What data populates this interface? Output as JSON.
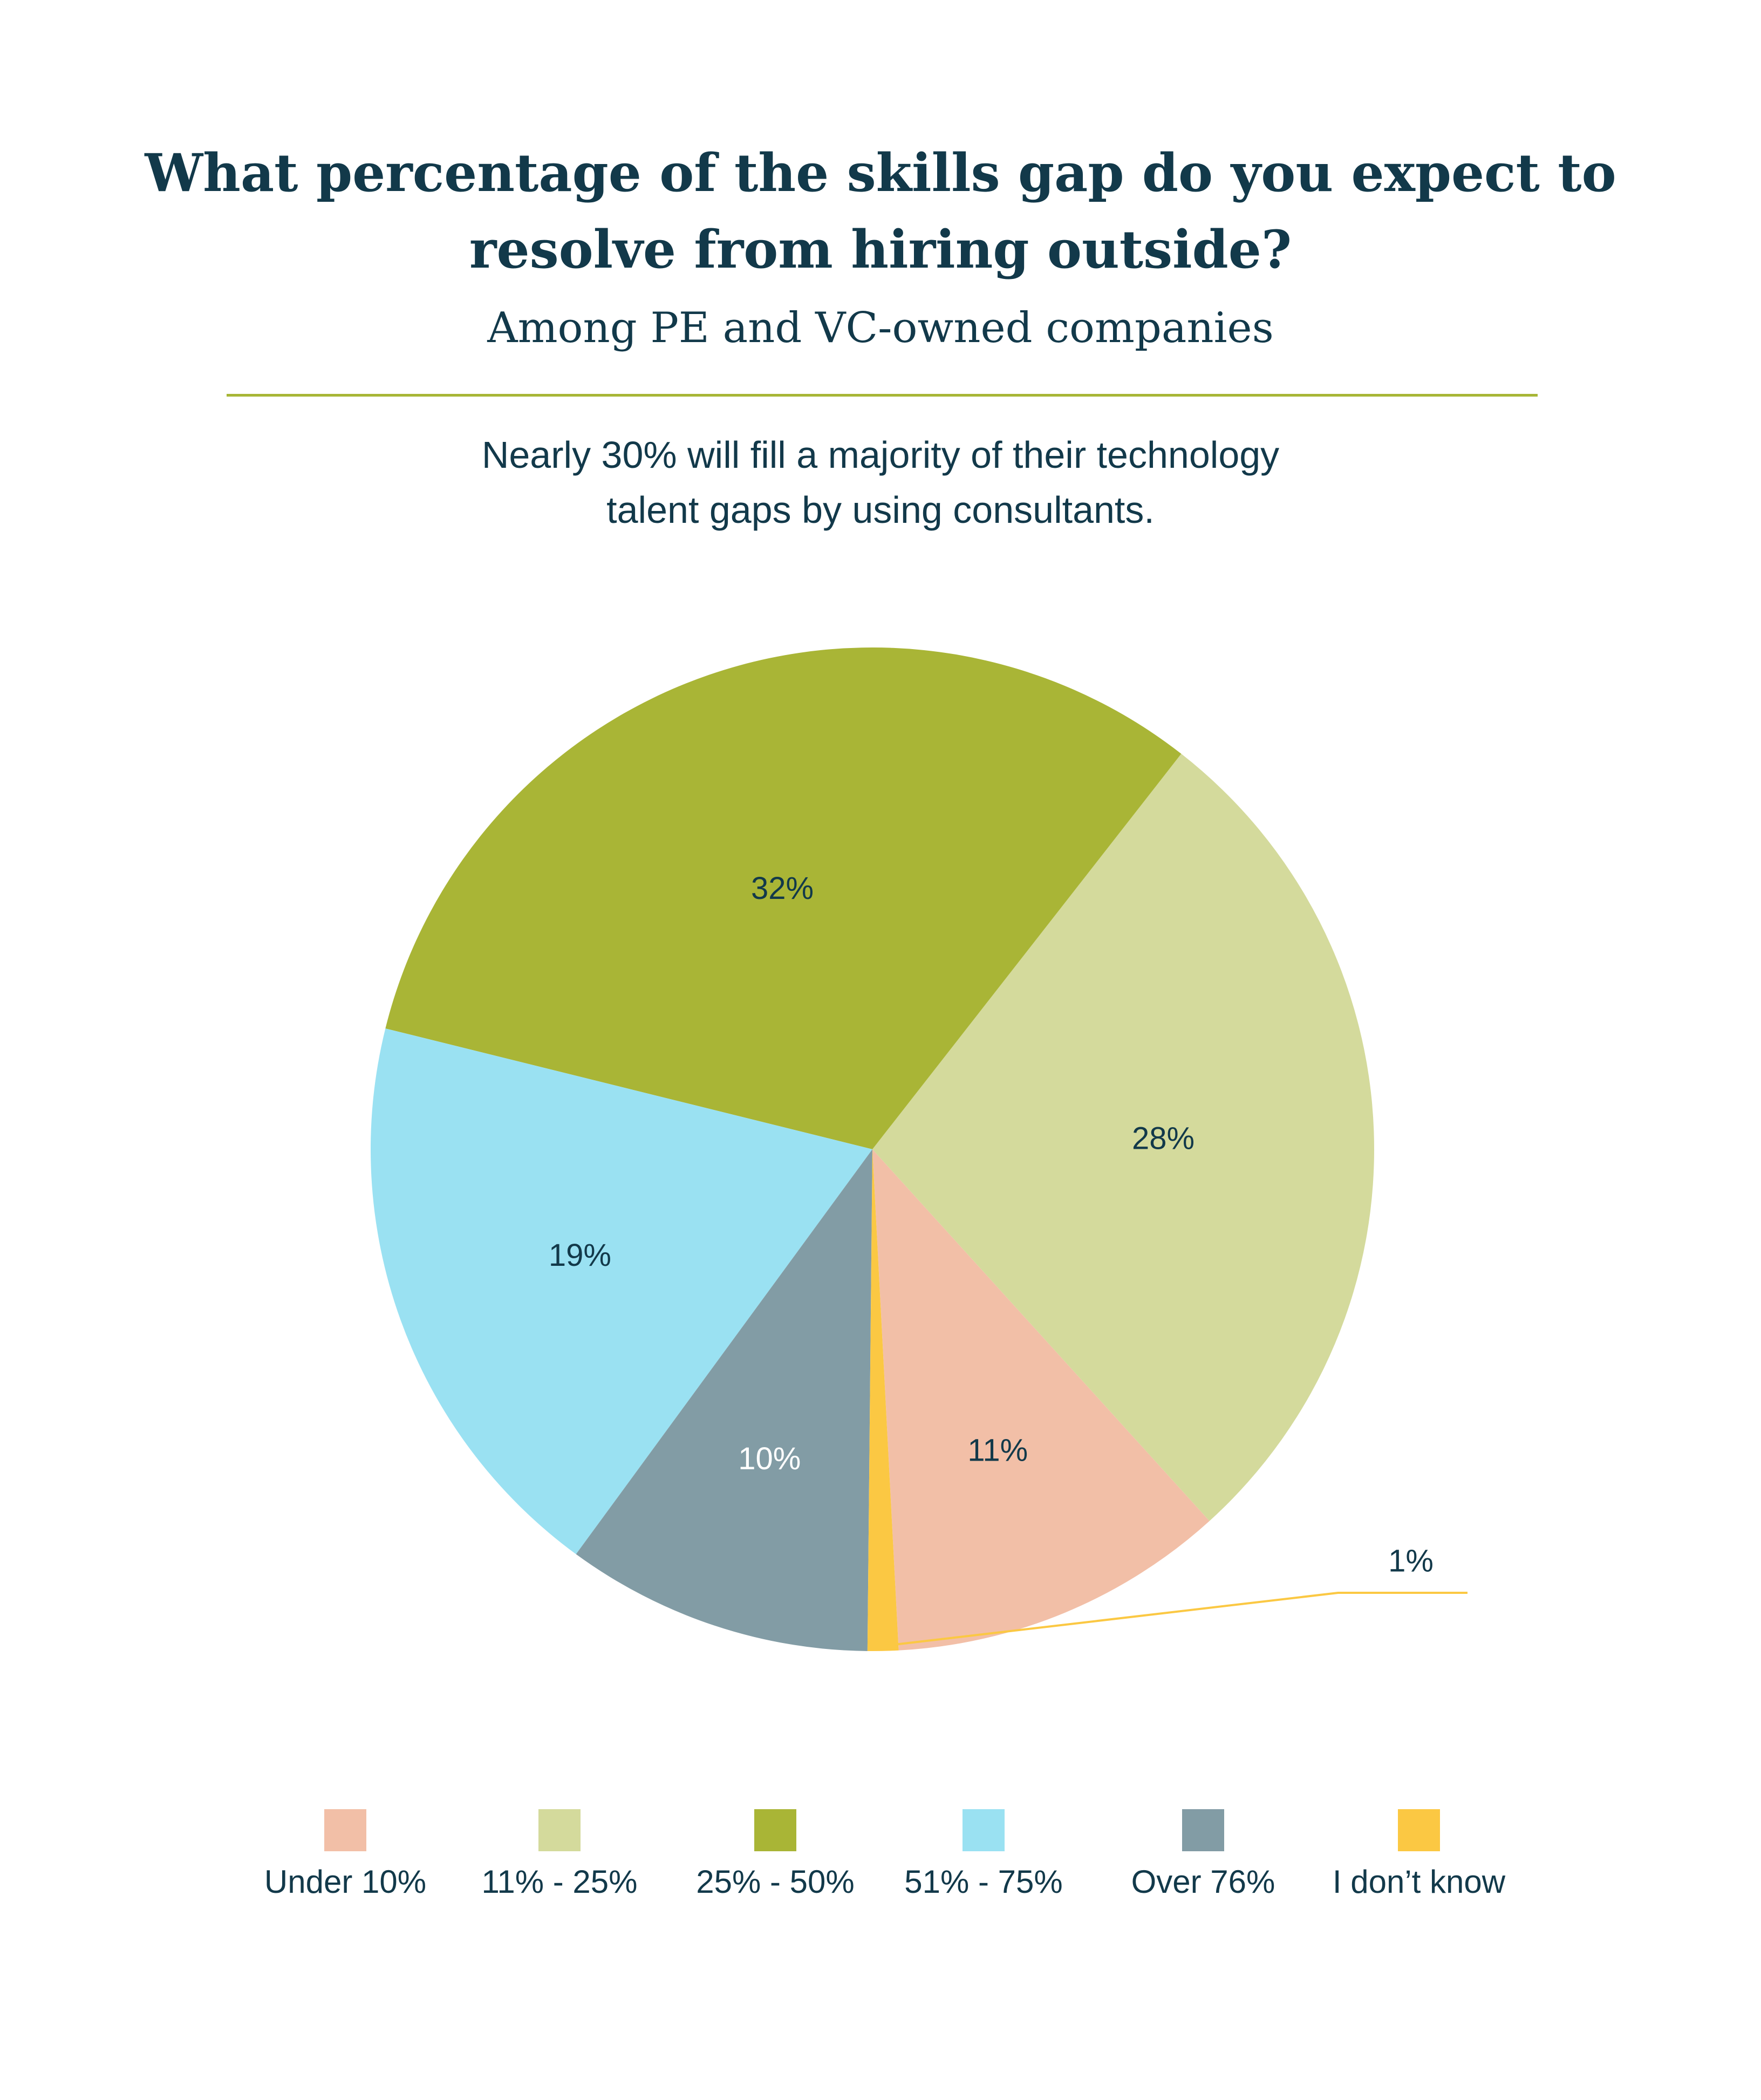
{
  "title_line1": "What percentage of the skills gap do you expect to",
  "title_line2": "resolve from hiring outside?",
  "subtitle": "Among PE and VC-owned companies",
  "note_line1": "Nearly 30% will fill a majority of their technology",
  "note_line2": "talent gaps by using consultants.",
  "colors": {
    "text": "#12394a",
    "rule": "#a7b636"
  },
  "chart_data": {
    "type": "pie",
    "unit": "%",
    "legend_position": "bottom",
    "slices": [
      {
        "name": "Under 10%",
        "value": 11,
        "label": "11%",
        "color": "#f2bfa7"
      },
      {
        "name": "11% - 25%",
        "value": 28,
        "label": "28%",
        "color": "#d4da9c"
      },
      {
        "name": "25% - 50%",
        "value": 32,
        "label": "32%",
        "color": "#a9b536"
      },
      {
        "name": "51% - 75%",
        "value": 19,
        "label": "19%",
        "color": "#9ae1f2"
      },
      {
        "name": "Over 76%",
        "value": 10,
        "label": "10%",
        "color": "#829ca5"
      },
      {
        "name": "I don’t know",
        "value": 1,
        "label": "1%",
        "color": "#fbc843"
      }
    ]
  }
}
